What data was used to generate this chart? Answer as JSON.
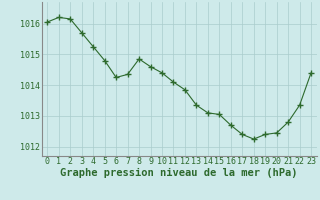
{
  "x": [
    0,
    1,
    2,
    3,
    4,
    5,
    6,
    7,
    8,
    9,
    10,
    11,
    12,
    13,
    14,
    15,
    16,
    17,
    18,
    19,
    20,
    21,
    22,
    23
  ],
  "y": [
    1016.05,
    1016.2,
    1016.15,
    1015.7,
    1015.25,
    1014.8,
    1014.25,
    1014.35,
    1014.85,
    1014.6,
    1014.4,
    1014.1,
    1013.85,
    1013.35,
    1013.1,
    1013.05,
    1012.7,
    1012.4,
    1012.25,
    1012.4,
    1012.45,
    1012.8,
    1013.35,
    1014.4
  ],
  "line_color": "#2d6a2d",
  "marker_color": "#2d6a2d",
  "bg_color": "#ceeaea",
  "grid_color": "#aacccc",
  "xlabel": "Graphe pression niveau de la mer (hPa)",
  "xlabel_color": "#2d6a2d",
  "xlabel_fontsize": 7.5,
  "tick_color": "#2d6a2d",
  "tick_fontsize": 6.0,
  "ylim": [
    1011.7,
    1016.7
  ],
  "yticks": [
    1012,
    1013,
    1014,
    1015,
    1016
  ],
  "xlim": [
    -0.5,
    23.5
  ],
  "xticks": [
    0,
    1,
    2,
    3,
    4,
    5,
    6,
    7,
    8,
    9,
    10,
    11,
    12,
    13,
    14,
    15,
    16,
    17,
    18,
    19,
    20,
    21,
    22,
    23
  ]
}
